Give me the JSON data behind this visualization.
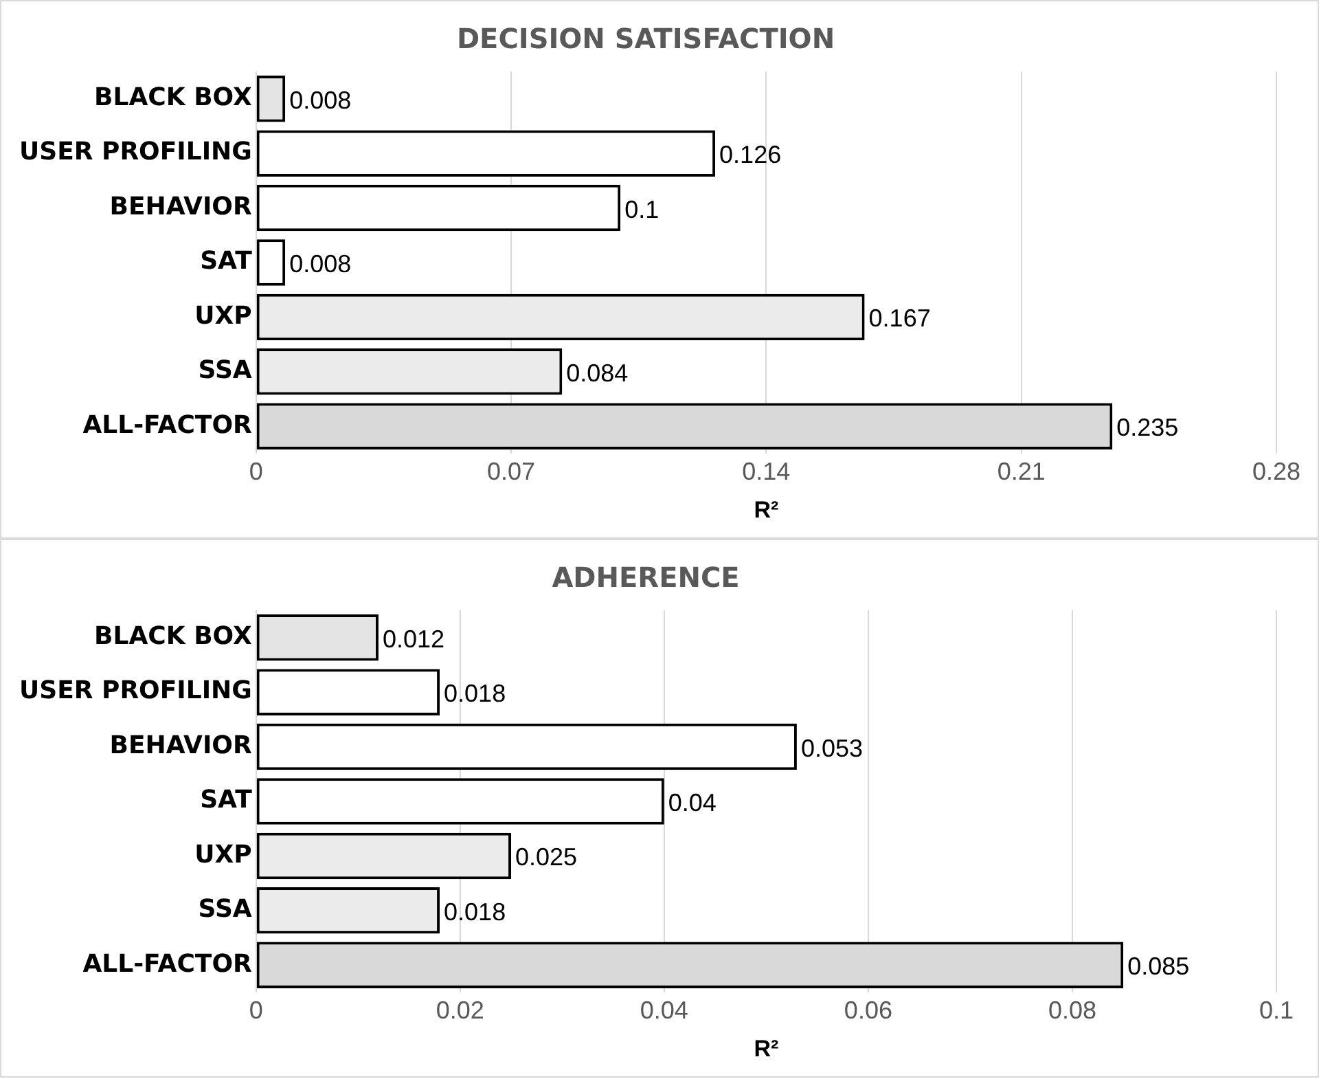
{
  "chart_data": [
    {
      "type": "bar",
      "orientation": "horizontal",
      "title": "DECISION SATISFACTION",
      "xlabel": "R²",
      "categories": [
        "BLACK BOX",
        "USER PROFILING",
        "BEHAVIOR",
        "SAT",
        "UXP",
        "SSA",
        "ALL-FACTOR"
      ],
      "values": [
        0.008,
        0.126,
        0.1,
        0.008,
        0.167,
        0.084,
        0.235
      ],
      "colors": [
        "#e4e4e4",
        "#ffffff",
        "#ffffff",
        "#ffffff",
        "#ebebeb",
        "#ebebeb",
        "#d9d9d9"
      ],
      "xlim": [
        0,
        0.28
      ],
      "xticks": [
        0,
        0.07,
        0.14,
        0.21,
        0.28
      ],
      "grid": "x",
      "legend": false,
      "data_labels": true
    },
    {
      "type": "bar",
      "orientation": "horizontal",
      "title": "ADHERENCE",
      "xlabel": "R²",
      "categories": [
        "BLACK BOX",
        "USER PROFILING",
        "BEHAVIOR",
        "SAT",
        "UXP",
        "SSA",
        "ALL-FACTOR"
      ],
      "values": [
        0.012,
        0.018,
        0.053,
        0.04,
        0.025,
        0.018,
        0.085
      ],
      "colors": [
        "#e4e4e4",
        "#ffffff",
        "#ffffff",
        "#ffffff",
        "#ebebeb",
        "#ebebeb",
        "#d9d9d9"
      ],
      "xlim": [
        0,
        0.1
      ],
      "xticks": [
        0,
        0.02,
        0.04,
        0.06,
        0.08,
        0.1
      ],
      "grid": "x",
      "legend": false,
      "data_labels": true
    }
  ]
}
